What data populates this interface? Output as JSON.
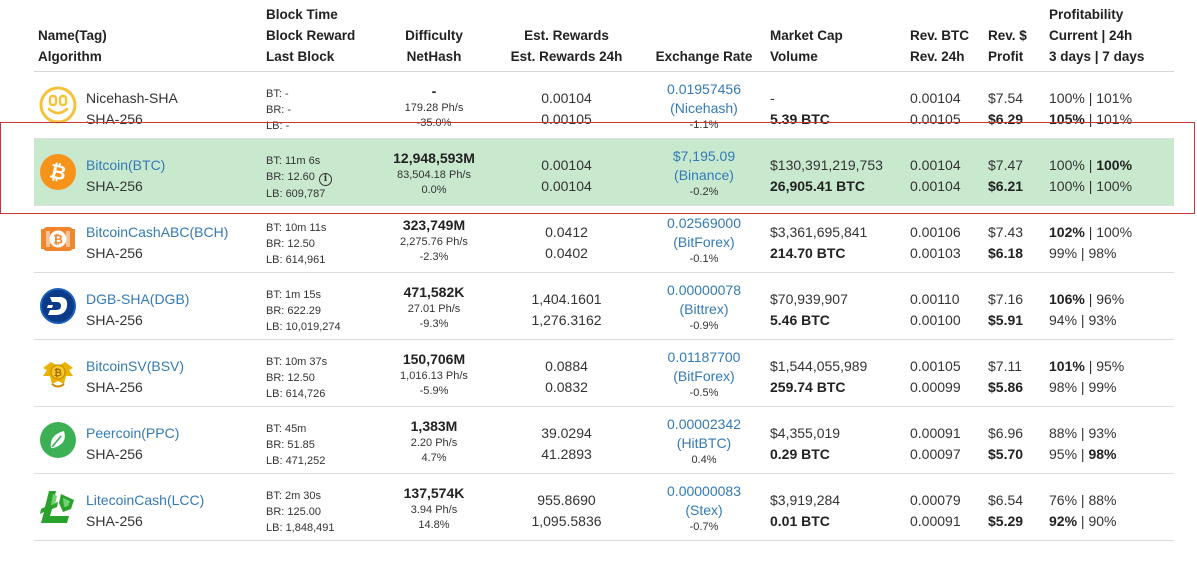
{
  "header": {
    "name_tag": "Name(Tag)",
    "algorithm": "Algorithm",
    "block_time": "Block Time",
    "block_reward": "Block Reward",
    "last_block": "Last Block",
    "difficulty": "Difficulty",
    "nethash": "NetHash",
    "est_rewards": "Est. Rewards",
    "est_rewards_24h": "Est. Rewards 24h",
    "exchange_rate": "Exchange Rate",
    "market_cap": "Market Cap",
    "volume": "Volume",
    "rev_btc": "Rev. BTC",
    "rev_btc_24h": "Rev. 24h",
    "rev_usd": "Rev. $",
    "profit": "Profit",
    "profitability": "Profitability",
    "current_24h": "Current | 24h",
    "days": "3 days | 7 days"
  },
  "rows": [
    {
      "icon": "nicehash-icon",
      "name": "Nicehash-SHA",
      "algo": "SHA-256",
      "bt": "BT: -",
      "br": "BR: -",
      "lb": "LB: -",
      "diff": "-",
      "nethash": "179.28 Ph/s",
      "diff_chg": "-35.0%",
      "rew": "0.00104",
      "rew24": "0.00105",
      "rate": "0.01957456",
      "exch": "(Nicehash)",
      "rate_chg": "-1.1%",
      "mcap": "-",
      "vol": "5.39 BTC",
      "rbtc": "0.00104",
      "rbtc24": "0.00105",
      "rusd": "$7.54",
      "profit": "$6.29",
      "p_cur": "100%",
      "p_24": "101%",
      "p_3d": "105%",
      "p_7d": "101%"
    },
    {
      "icon": "bitcoin-icon",
      "name": "Bitcoin(BTC)",
      "algo": "SHA-256",
      "bt": "BT: 11m 6s",
      "br": "BR: 12.60",
      "lb": "LB: 609,787",
      "diff": "12,948,593M",
      "nethash": "83,504.18 Ph/s",
      "diff_chg": "0.0%",
      "rew": "0.00104",
      "rew24": "0.00104",
      "rate": "$7,195.09",
      "exch": "(Binance)",
      "rate_chg": "-0.2%",
      "mcap": "$130,391,219,753",
      "vol": "26,905.41 BTC",
      "rbtc": "0.00104",
      "rbtc24": "0.00104",
      "rusd": "$7.47",
      "profit": "$6.21",
      "p_cur": "100%",
      "p_24": "100%",
      "p_3d": "100%",
      "p_7d": "100%"
    },
    {
      "icon": "bitcoincash-icon",
      "name": "BitcoinCashABC(BCH)",
      "algo": "SHA-256",
      "bt": "BT: 10m 11s",
      "br": "BR: 12.50",
      "lb": "LB: 614,961",
      "diff": "323,749M",
      "nethash": "2,275.76 Ph/s",
      "diff_chg": "-2.3%",
      "rew": "0.0412",
      "rew24": "0.0402",
      "rate": "0.02569000",
      "exch": "(BitForex)",
      "rate_chg": "-0.1%",
      "mcap": "$3,361,695,841",
      "vol": "214.70 BTC",
      "rbtc": "0.00106",
      "rbtc24": "0.00103",
      "rusd": "$7.43",
      "profit": "$6.18",
      "p_cur": "102%",
      "p_24": "100%",
      "p_3d": "99%",
      "p_7d": "98%"
    },
    {
      "icon": "digibyte-icon",
      "name": "DGB-SHA(DGB)",
      "algo": "SHA-256",
      "bt": "BT: 1m 15s",
      "br": "BR: 622.29",
      "lb": "LB: 10,019,274",
      "diff": "471,582K",
      "nethash": "27.01 Ph/s",
      "diff_chg": "-9.3%",
      "rew": "1,404.1601",
      "rew24": "1,276.3162",
      "rate": "0.00000078",
      "exch": "(Bittrex)",
      "rate_chg": "-0.9%",
      "mcap": "$70,939,907",
      "vol": "5.46 BTC",
      "rbtc": "0.00110",
      "rbtc24": "0.00100",
      "rusd": "$7.16",
      "profit": "$5.91",
      "p_cur": "106%",
      "p_24": "96%",
      "p_3d": "94%",
      "p_7d": "93%"
    },
    {
      "icon": "bitcoinsv-icon",
      "name": "BitcoinSV(BSV)",
      "algo": "SHA-256",
      "bt": "BT: 10m 37s",
      "br": "BR: 12.50",
      "lb": "LB: 614,726",
      "diff": "150,706M",
      "nethash": "1,016.13 Ph/s",
      "diff_chg": "-5.9%",
      "rew": "0.0884",
      "rew24": "0.0832",
      "rate": "0.01187700",
      "exch": "(BitForex)",
      "rate_chg": "-0.5%",
      "mcap": "$1,544,055,989",
      "vol": "259.74 BTC",
      "rbtc": "0.00105",
      "rbtc24": "0.00099",
      "rusd": "$7.11",
      "profit": "$5.86",
      "p_cur": "101%",
      "p_24": "95%",
      "p_3d": "98%",
      "p_7d": "99%"
    },
    {
      "icon": "peercoin-icon",
      "name": "Peercoin(PPC)",
      "algo": "SHA-256",
      "bt": "BT: 45m",
      "br": "BR: 51.85",
      "lb": "LB: 471,252",
      "diff": "1,383M",
      "nethash": "2.20 Ph/s",
      "diff_chg": "4.7%",
      "rew": "39.0294",
      "rew24": "41.2893",
      "rate": "0.00002342",
      "exch": "(HitBTC)",
      "rate_chg": "0.4%",
      "mcap": "$4,355,019",
      "vol": "0.29 BTC",
      "rbtc": "0.00091",
      "rbtc24": "0.00097",
      "rusd": "$6.96",
      "profit": "$5.70",
      "p_cur": "88%",
      "p_24": "93%",
      "p_3d": "95%",
      "p_7d": "98%"
    },
    {
      "icon": "litecoincash-icon",
      "name": "LitecoinCash(LCC)",
      "algo": "SHA-256",
      "bt": "BT: 2m 30s",
      "br": "BR: 125.00",
      "lb": "LB: 1,848,491",
      "diff": "137,574K",
      "nethash": "3.94 Ph/s",
      "diff_chg": "14.8%",
      "rew": "955.8690",
      "rew24": "1,095.5836",
      "rate": "0.00000083",
      "exch": "(Stex)",
      "rate_chg": "-0.7%",
      "mcap": "$3,919,284",
      "vol": "0.01 BTC",
      "rbtc": "0.00079",
      "rbtc24": "0.00091",
      "rusd": "$6.54",
      "profit": "$5.29",
      "p_cur": "76%",
      "p_24": "88%",
      "p_3d": "92%",
      "p_7d": "90%"
    }
  ]
}
